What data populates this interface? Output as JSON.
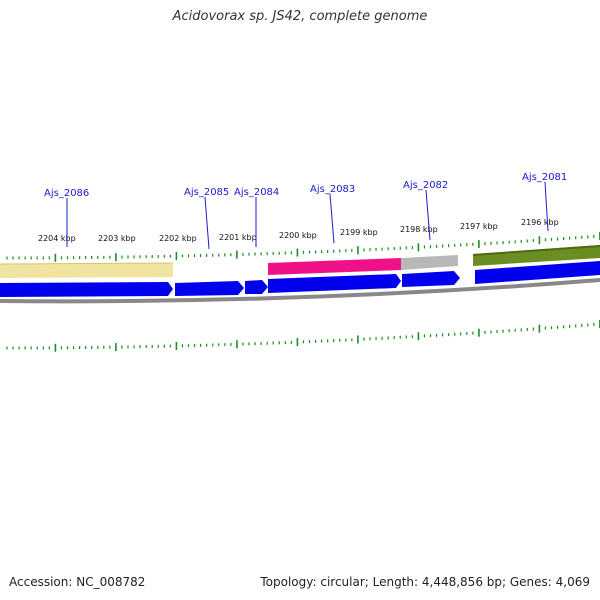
{
  "title": "Acidovorax sp. JS42, complete genome",
  "accession_text": "Accession: NC_008782",
  "summary_text": "Topology: circular; Length: 4,448,856 bp; Genes: 4,069",
  "colors": {
    "cds_forward": "#0000ee",
    "backbone": "#888888",
    "tick": "#1e8c1e",
    "feature_yellow": "#f0e4a0",
    "feature_pink": "#ee1188",
    "feature_gray": "#b8b8b8",
    "feature_olive": "#6b8e23",
    "gene_label": "#1a1acc"
  },
  "scale_labels": [
    "2204 kbp",
    "2203 kbp",
    "2202 kbp",
    "2201 kbp",
    "2200 kbp",
    "2199 kbp",
    "2198 kbp",
    "2197 kbp",
    "2196 kbp"
  ],
  "gene_labels": [
    "Ajs_2086",
    "Ajs_2085",
    "Ajs_2084",
    "Ajs_2083",
    "Ajs_2082",
    "Ajs_2081"
  ]
}
